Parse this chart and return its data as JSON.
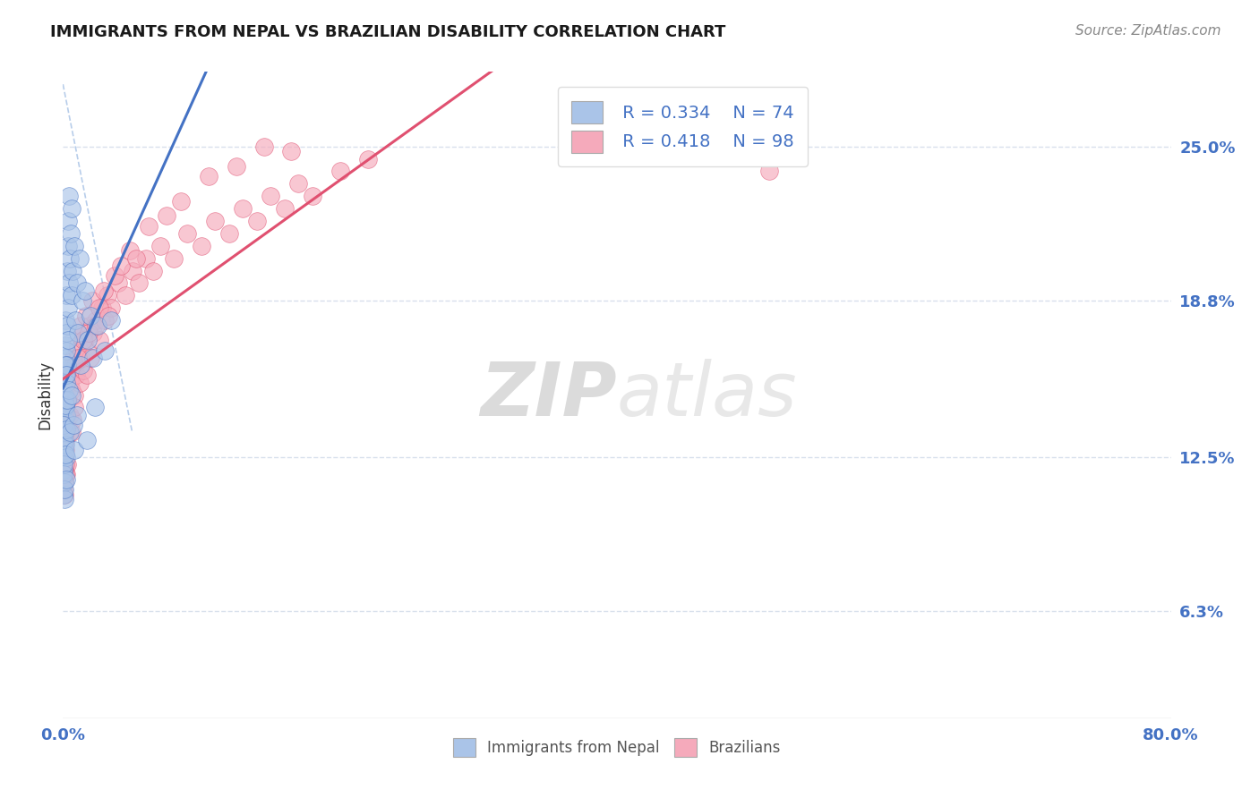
{
  "title": "IMMIGRANTS FROM NEPAL VS BRAZILIAN DISABILITY CORRELATION CHART",
  "source_text": "Source: ZipAtlas.com",
  "ylabel": "Disability",
  "watermark_zip": "ZIP",
  "watermark_atlas": "atlas",
  "legend_r1": "R = 0.334",
  "legend_n1": "N = 74",
  "legend_r2": "R = 0.418",
  "legend_n2": "N = 98",
  "series1_color": "#aac4e8",
  "series2_color": "#f5aabb",
  "line1_color": "#4472c4",
  "line2_color": "#e05070",
  "diag_color": "#b0c8e8",
  "xmin": 0.0,
  "xmax": 80.0,
  "ymin": 2.0,
  "ymax": 28.0,
  "yticks": [
    6.3,
    12.5,
    18.8,
    25.0
  ],
  "grid_color": "#d8e0ec",
  "background_color": "#ffffff",
  "nepal_x": [
    0.02,
    0.03,
    0.04,
    0.05,
    0.06,
    0.07,
    0.08,
    0.09,
    0.1,
    0.11,
    0.12,
    0.13,
    0.14,
    0.15,
    0.16,
    0.17,
    0.18,
    0.19,
    0.2,
    0.21,
    0.22,
    0.23,
    0.24,
    0.25,
    0.26,
    0.28,
    0.3,
    0.32,
    0.35,
    0.38,
    0.4,
    0.42,
    0.45,
    0.5,
    0.55,
    0.6,
    0.65,
    0.7,
    0.8,
    0.9,
    1.0,
    1.1,
    1.2,
    1.4,
    1.6,
    1.8,
    2.0,
    2.2,
    2.5,
    3.0,
    3.5,
    0.03,
    0.05,
    0.07,
    0.09,
    0.11,
    0.13,
    0.15,
    0.17,
    0.19,
    0.21,
    0.23,
    0.27,
    0.31,
    0.36,
    0.43,
    0.52,
    0.62,
    0.75,
    0.85,
    1.0,
    1.3,
    1.7,
    2.3
  ],
  "nepal_y": [
    12.5,
    13.0,
    11.0,
    14.5,
    12.0,
    15.5,
    13.5,
    11.5,
    16.0,
    12.8,
    14.0,
    13.2,
    15.0,
    17.0,
    14.5,
    16.5,
    13.0,
    15.8,
    18.0,
    14.2,
    16.8,
    12.5,
    17.5,
    15.5,
    19.0,
    16.2,
    20.0,
    17.8,
    21.0,
    18.5,
    22.0,
    19.5,
    23.0,
    20.5,
    21.5,
    22.5,
    19.0,
    20.0,
    21.0,
    18.0,
    19.5,
    17.5,
    20.5,
    18.8,
    19.2,
    17.2,
    18.2,
    16.5,
    17.8,
    16.8,
    18.0,
    11.8,
    13.8,
    12.2,
    10.8,
    14.8,
    11.2,
    16.2,
    12.6,
    14.6,
    11.6,
    13.6,
    15.8,
    14.8,
    17.2,
    15.2,
    13.5,
    15.0,
    13.8,
    12.8,
    14.2,
    16.2,
    13.2,
    14.5
  ],
  "brazil_x": [
    0.02,
    0.04,
    0.06,
    0.08,
    0.1,
    0.12,
    0.14,
    0.16,
    0.18,
    0.2,
    0.22,
    0.25,
    0.28,
    0.3,
    0.33,
    0.36,
    0.4,
    0.44,
    0.48,
    0.52,
    0.56,
    0.6,
    0.65,
    0.7,
    0.75,
    0.8,
    0.85,
    0.9,
    0.95,
    1.0,
    1.1,
    1.2,
    1.3,
    1.4,
    1.5,
    1.6,
    1.7,
    1.8,
    1.9,
    2.0,
    2.2,
    2.4,
    2.6,
    2.8,
    3.0,
    3.2,
    3.5,
    4.0,
    4.5,
    5.0,
    5.5,
    6.0,
    6.5,
    7.0,
    8.0,
    9.0,
    10.0,
    11.0,
    12.0,
    13.0,
    14.0,
    15.0,
    16.0,
    17.0,
    18.0,
    20.0,
    22.0,
    1.05,
    1.25,
    1.45,
    1.65,
    1.85,
    2.1,
    2.35,
    2.65,
    2.95,
    3.3,
    3.7,
    4.2,
    4.8,
    5.3,
    6.2,
    7.5,
    8.5,
    10.5,
    12.5,
    14.5,
    16.5,
    0.03,
    0.05,
    0.07,
    0.09,
    0.11,
    0.13,
    0.15,
    0.17,
    0.19,
    51.0
  ],
  "brazil_y": [
    12.0,
    11.5,
    13.5,
    12.5,
    14.0,
    11.0,
    13.0,
    12.8,
    14.5,
    13.2,
    11.8,
    15.0,
    12.2,
    14.2,
    13.8,
    15.8,
    14.8,
    13.5,
    15.5,
    14.2,
    16.0,
    13.5,
    15.2,
    14.0,
    16.5,
    15.0,
    14.5,
    16.2,
    15.8,
    16.8,
    17.0,
    15.5,
    16.5,
    17.5,
    16.0,
    17.2,
    15.8,
    16.8,
    17.8,
    16.5,
    17.5,
    18.0,
    17.2,
    18.5,
    18.0,
    19.0,
    18.5,
    19.5,
    19.0,
    20.0,
    19.5,
    20.5,
    20.0,
    21.0,
    20.5,
    21.5,
    21.0,
    22.0,
    21.5,
    22.5,
    22.0,
    23.0,
    22.5,
    23.5,
    23.0,
    24.0,
    24.5,
    16.5,
    17.8,
    17.2,
    18.2,
    17.5,
    18.8,
    17.8,
    18.5,
    19.2,
    18.2,
    19.8,
    20.2,
    20.8,
    20.5,
    21.8,
    22.2,
    22.8,
    23.8,
    24.2,
    25.0,
    24.8,
    12.5,
    11.2,
    13.2,
    12.0,
    14.2,
    11.5,
    13.5,
    12.2,
    11.8,
    24.0
  ],
  "title_fontsize": 13,
  "source_fontsize": 11,
  "tick_fontsize": 13,
  "legend_fontsize": 14
}
